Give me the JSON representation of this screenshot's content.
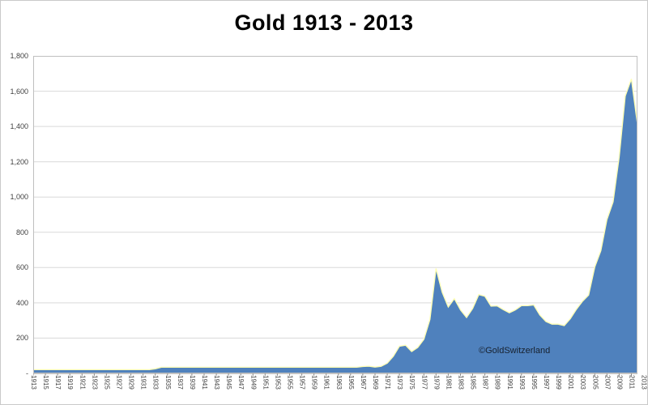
{
  "title": "Gold 1913 - 2013",
  "watermark": "©GoldSwitzerland",
  "chart_data": {
    "type": "area",
    "title": "Gold 1913 - 2013",
    "xlabel": "",
    "ylabel": "",
    "ylim": [
      0,
      1800
    ],
    "grid": true,
    "legend": "none",
    "area_color": "#4f81bd",
    "edge_color": "#ffffb3",
    "grid_color": "#d9d9d9",
    "years_start": 1913,
    "years_end": 2013,
    "values": [
      21,
      21,
      21,
      21,
      21,
      21,
      21,
      21,
      21,
      21,
      21,
      21,
      21,
      21,
      21,
      21,
      21,
      21,
      21,
      21,
      26,
      35,
      35,
      35,
      35,
      35,
      35,
      35,
      35,
      35,
      35,
      35,
      35,
      35,
      35,
      35,
      35,
      35,
      35,
      35,
      35,
      35,
      35,
      35,
      35,
      35,
      35,
      35,
      35,
      35,
      35,
      35,
      35,
      35,
      39,
      41,
      36,
      40,
      58,
      97,
      154,
      160,
      124,
      147,
      193,
      306,
      595,
      460,
      376,
      424,
      360,
      317,
      368,
      447,
      437,
      381,
      383,
      362,
      344,
      360,
      384,
      384,
      388,
      331,
      294,
      279,
      279,
      271,
      310,
      363,
      409,
      444,
      603,
      695,
      872,
      972,
      1225,
      1572,
      1669,
      1411
    ],
    "y_ticks": [
      0,
      200,
      400,
      600,
      800,
      1000,
      1200,
      1400,
      1600,
      1800
    ],
    "y_tick_labels": [
      "-",
      "200",
      "400",
      "600",
      "800",
      "1,000",
      "1,200",
      "1,400",
      "1,600",
      "1,800"
    ],
    "x_tick_labels": [
      "1913",
      "1915",
      "1917",
      "1919",
      "1921",
      "1923",
      "1925",
      "1927",
      "1929",
      "1931",
      "1933",
      "1935",
      "1937",
      "1939",
      "1941",
      "1943",
      "1945",
      "1947",
      "1949",
      "1951",
      "1953",
      "1955",
      "1957",
      "1959",
      "1961",
      "1963",
      "1965",
      "1967",
      "1969",
      "1971",
      "1973",
      "1975",
      "1977",
      "1979",
      "1981",
      "1983",
      "1985",
      "1987",
      "1989",
      "1991",
      "1993",
      "1995",
      "1997",
      "1999",
      "2001",
      "2003",
      "2005",
      "2007",
      "2009",
      "2011",
      "2013"
    ]
  }
}
